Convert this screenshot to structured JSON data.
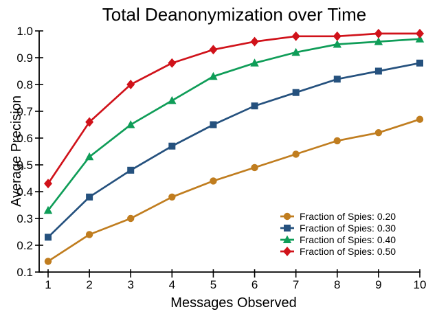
{
  "figure": {
    "background": "#ffffff",
    "text_color": "#000000",
    "axis_color": "#000000"
  },
  "chart_data": {
    "type": "line",
    "title": "Total Deanonymization over Time",
    "xlabel": "Messages Observed",
    "ylabel": "Average Precision",
    "x": [
      1,
      2,
      3,
      4,
      5,
      6,
      7,
      8,
      9,
      10
    ],
    "xticks": [
      1,
      2,
      3,
      4,
      5,
      6,
      7,
      8,
      9,
      10
    ],
    "yticks": [
      0.1,
      0.2,
      0.3,
      0.4,
      0.5,
      0.6,
      0.7,
      0.8,
      0.9,
      1.0
    ],
    "ylim": [
      0.1,
      1.0
    ],
    "xlim": [
      1,
      10
    ],
    "grid": false,
    "legend_position": "lower-right",
    "series": [
      {
        "name": "Fraction of Spies: 0.20",
        "marker": "circle",
        "color": "#C07D1F",
        "values": [
          0.14,
          0.24,
          0.3,
          0.38,
          0.44,
          0.49,
          0.54,
          0.59,
          0.62,
          0.67
        ]
      },
      {
        "name": "Fraction of Spies: 0.30",
        "marker": "square",
        "color": "#25517E",
        "values": [
          0.23,
          0.38,
          0.48,
          0.57,
          0.65,
          0.72,
          0.77,
          0.82,
          0.85,
          0.88
        ]
      },
      {
        "name": "Fraction of Spies: 0.40",
        "marker": "triangle-up",
        "color": "#0F9D58",
        "values": [
          0.33,
          0.53,
          0.65,
          0.74,
          0.83,
          0.88,
          0.92,
          0.95,
          0.96,
          0.97
        ]
      },
      {
        "name": "Fraction of Spies: 0.50",
        "marker": "diamond",
        "color": "#D0121A",
        "values": [
          0.43,
          0.66,
          0.8,
          0.88,
          0.93,
          0.96,
          0.98,
          0.98,
          0.99,
          0.99
        ]
      }
    ]
  }
}
